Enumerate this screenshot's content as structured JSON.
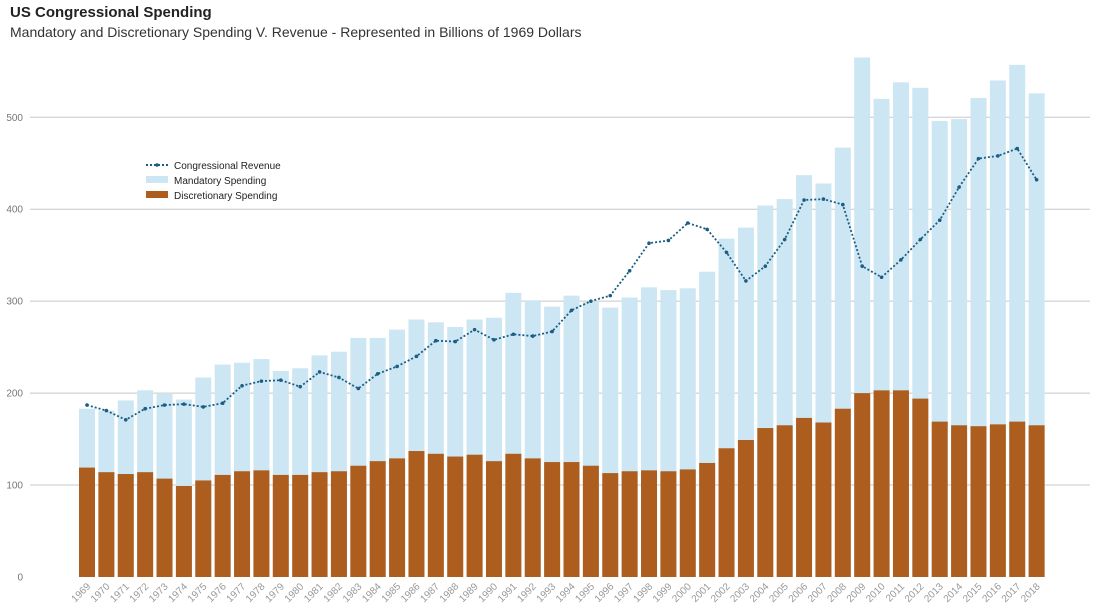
{
  "chart_data": {
    "type": "bar",
    "title": "US Congressional Spending",
    "subtitle": "Mandatory and Discretionary Spending V. Revenue - Represented in Billions of 1969 Dollars",
    "xlabel": "",
    "ylabel": "",
    "ylim": [
      0,
      575
    ],
    "yticks": [
      0,
      100,
      200,
      300,
      400,
      500
    ],
    "grid": true,
    "legend_position": "upper-left",
    "categories": [
      "1969",
      "1970",
      "1971",
      "1972",
      "1973",
      "1974",
      "1975",
      "1976",
      "1977",
      "1978",
      "1979",
      "1980",
      "1981",
      "1982",
      "1983",
      "1984",
      "1985",
      "1986",
      "1987",
      "1988",
      "1989",
      "1990",
      "1991",
      "1992",
      "1993",
      "1994",
      "1995",
      "1996",
      "1997",
      "1998",
      "1999",
      "2000",
      "2001",
      "2002",
      "2003",
      "2004",
      "2005",
      "2006",
      "2007",
      "2008",
      "2009",
      "2010",
      "2011",
      "2012",
      "2013",
      "2014",
      "2015",
      "2016",
      "2017",
      "2018"
    ],
    "series": [
      {
        "name": "Discretionary Spending",
        "kind": "bar-bottom",
        "color": "#ad5e1f",
        "values": [
          119,
          114,
          112,
          114,
          107,
          99,
          105,
          111,
          115,
          116,
          111,
          111,
          114,
          115,
          121,
          126,
          129,
          137,
          134,
          131,
          133,
          126,
          134,
          129,
          125,
          125,
          121,
          113,
          115,
          116,
          115,
          117,
          124,
          140,
          149,
          162,
          165,
          173,
          168,
          183,
          200,
          203,
          203,
          194,
          169,
          165,
          164,
          166,
          169,
          165
        ]
      },
      {
        "name": "Mandatory Spending",
        "kind": "bar-total",
        "color": "#cde6f3",
        "values": [
          183,
          181,
          192,
          203,
          200,
          193,
          217,
          231,
          233,
          237,
          224,
          227,
          241,
          245,
          260,
          260,
          269,
          280,
          277,
          272,
          280,
          282,
          309,
          301,
          294,
          306,
          299,
          293,
          304,
          315,
          312,
          314,
          332,
          368,
          380,
          404,
          411,
          437,
          428,
          467,
          565,
          520,
          538,
          532,
          496,
          498,
          521,
          540,
          557,
          526
        ]
      },
      {
        "name": "Congressional Revenue",
        "kind": "line",
        "color": "#1b5e83",
        "values": [
          187,
          181,
          171,
          183,
          187,
          188,
          185,
          189,
          208,
          213,
          214,
          207,
          223,
          217,
          205,
          221,
          229,
          240,
          257,
          256,
          269,
          258,
          264,
          262,
          267,
          290,
          300,
          306,
          333,
          363,
          366,
          385,
          378,
          353,
          322,
          338,
          367,
          410,
          411,
          405,
          338,
          326,
          345,
          367,
          388,
          424,
          455,
          458,
          466,
          432
        ]
      }
    ]
  }
}
